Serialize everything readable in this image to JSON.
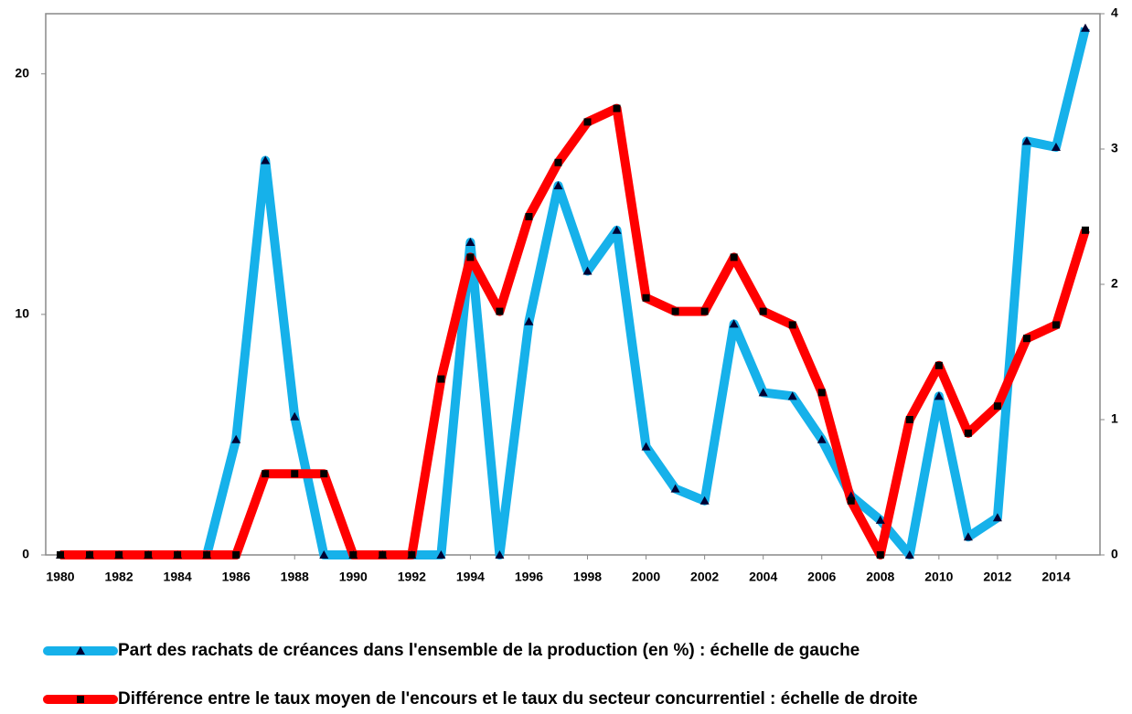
{
  "chart_data": {
    "type": "line",
    "x": [
      1980,
      1981,
      1982,
      1983,
      1984,
      1985,
      1986,
      1987,
      1988,
      1989,
      1990,
      1991,
      1992,
      1993,
      1994,
      1995,
      1996,
      1997,
      1998,
      1999,
      2000,
      2001,
      2002,
      2003,
      2004,
      2005,
      2006,
      2007,
      2008,
      2009,
      2010,
      2011,
      2012,
      2013,
      2014,
      2015
    ],
    "xlim": [
      1979.5,
      2015.5
    ],
    "xticks": [
      1980,
      1982,
      1984,
      1986,
      1988,
      1990,
      1992,
      1994,
      1996,
      1998,
      2000,
      2002,
      2004,
      2006,
      2008,
      2010,
      2012,
      2014
    ],
    "ylim": [
      0,
      22.5
    ],
    "yticks": [
      0,
      10,
      20
    ],
    "y2lim": [
      0,
      4
    ],
    "y2ticks": [
      0,
      1,
      2,
      3,
      4
    ],
    "series": [
      {
        "name": "Part des rachats de créances dans l'ensemble de la production (en %) : échelle de gauche",
        "color": "#16b1ea",
        "marker": "triangle",
        "values": [
          0,
          0,
          0,
          0,
          0,
          0,
          4.8,
          16.4,
          5.75,
          0,
          0,
          0,
          0,
          0,
          13.0,
          0,
          9.7,
          15.35,
          11.8,
          13.5,
          4.5,
          2.75,
          2.25,
          9.6,
          6.75,
          6.6,
          4.8,
          2.45,
          1.45,
          0,
          6.6,
          0.75,
          1.55,
          17.2,
          16.95,
          21.9
        ]
      },
      {
        "name": "Différence entre le taux moyen de l'encours et le taux du secteur concurrentiel : échelle de droite",
        "color": "#ff0000",
        "marker": "square",
        "axis": "y2",
        "values": [
          0,
          0,
          0,
          0,
          0,
          0,
          0,
          0.6,
          0.6,
          0.6,
          0,
          0,
          0,
          1.3,
          2.2,
          1.8,
          2.5,
          2.9,
          3.2,
          3.3,
          1.9,
          1.8,
          1.8,
          2.2,
          1.8,
          1.7,
          1.2,
          0.4,
          0,
          1.0,
          1.4,
          0.9,
          1.1,
          1.6,
          1.7,
          2.4
        ]
      }
    ]
  }
}
